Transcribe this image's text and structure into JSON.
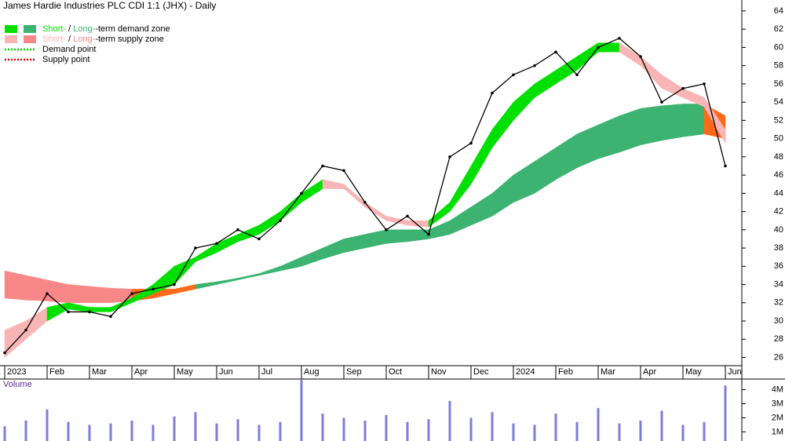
{
  "chart_data": {
    "type": "stock",
    "title": "James Hardie Industries PLC CDI 1:1 (JHX) - Daily",
    "categories": [
      "2023",
      null,
      "Feb",
      null,
      "Mar",
      null,
      "Apr",
      null,
      "May",
      null,
      "Jun",
      null,
      "Jul",
      null,
      "Aug",
      null,
      "Sep",
      null,
      "Oct",
      null,
      "Nov",
      null,
      "Dec",
      null,
      "2024",
      null,
      "Feb",
      null,
      "Mar",
      null,
      "Apr",
      null,
      "May",
      null,
      "Jun"
    ],
    "values": [
      26.5,
      29,
      33,
      31,
      31,
      30.5,
      33,
      33.5,
      34,
      38,
      38.5,
      40,
      39,
      41,
      44,
      47,
      46.5,
      43,
      40,
      41.5,
      39.5,
      48,
      49.5,
      55,
      57,
      58,
      59.5,
      57,
      60,
      61,
      59,
      54,
      55.5,
      56,
      47
    ],
    "color": "#000000",
    "ylim": [
      25.1,
      65.2
    ],
    "yticks": [
      26,
      28,
      30,
      32,
      34,
      36,
      38,
      40,
      42,
      44,
      46,
      48,
      50,
      52,
      54,
      56,
      58,
      60,
      62,
      64
    ],
    "zones": [
      {
        "upper": [
          35.5,
          35,
          34.5,
          34,
          33.8,
          33.6,
          33.5,
          33.5,
          33.5,
          34,
          34.3,
          34.7,
          35.2,
          36,
          37,
          38,
          39,
          39.5,
          40,
          40,
          40,
          41,
          42.5,
          44,
          46,
          47.5,
          49,
          50.5,
          51.5,
          52.5,
          53.3,
          53.6,
          53.8,
          53.8,
          52.5
        ],
        "lower": [
          32.5,
          32.3,
          32.2,
          32,
          32,
          32,
          32.2,
          32.5,
          33,
          33.5,
          34,
          34.5,
          35,
          35.5,
          36,
          36.8,
          37.5,
          38,
          38.5,
          38.7,
          39,
          39.5,
          40.5,
          41.5,
          43,
          44,
          45.5,
          46.8,
          47.8,
          48.5,
          49.3,
          49.8,
          50.2,
          50.5,
          50
        ],
        "colors": [
          "#f88888",
          "#f88888",
          "#f88888",
          "#f88888",
          "#f88888",
          "#f88888",
          "#ff6a1a",
          "#ff6a1a",
          "#ff6a1a",
          "#3cb371",
          "#3cb371",
          "#3cb371",
          "#3cb371",
          "#3cb371",
          "#3cb371",
          "#3cb371",
          "#3cb371",
          "#3cb371",
          "#3cb371",
          "#3cb371",
          "#3cb371",
          "#3cb371",
          "#3cb371",
          "#3cb371",
          "#3cb371",
          "#3cb371",
          "#3cb371",
          "#3cb371",
          "#3cb371",
          "#3cb371",
          "#3cb371",
          "#3cb371",
          "#3cb371",
          "#ff6a1a",
          "#ff6a1a"
        ]
      },
      {
        "upper": [
          29,
          30,
          31.5,
          32,
          31.5,
          31.5,
          32.5,
          34,
          36,
          37,
          38.5,
          39.5,
          40.5,
          42,
          44,
          45.5,
          45,
          43,
          41.5,
          41,
          41,
          43,
          47,
          51,
          54,
          56,
          57.5,
          59,
          60.5,
          60.5,
          59,
          57,
          55.5,
          54.5,
          51
        ],
        "lower": [
          26,
          28,
          30,
          31.3,
          31,
          31,
          32,
          33,
          34,
          36.5,
          37.5,
          38.7,
          39.5,
          41,
          43,
          44.5,
          44.5,
          42.5,
          41,
          40.5,
          40.3,
          42,
          45,
          49,
          52,
          54.5,
          56,
          57.5,
          59.5,
          59.5,
          58,
          55.5,
          54.5,
          53.5,
          49.5
        ],
        "colors": [
          "#f9b5b5",
          "#f9b5b5",
          "#00e000",
          "#00e000",
          "#00e000",
          "#00e000",
          "#00e000",
          "#00e000",
          "#00e000",
          "#00e000",
          "#00e000",
          "#00e000",
          "#00e000",
          "#00e000",
          "#00e000",
          "#f9b5b5",
          "#f9b5b5",
          "#f9b5b5",
          "#f9b5b5",
          "#f9b5b5",
          "#00e000",
          "#00e000",
          "#00e000",
          "#00e000",
          "#00e000",
          "#00e000",
          "#00e000",
          "#00e000",
          "#00e000",
          "#f9b5b5",
          "#f9b5b5",
          "#f9b5b5",
          "#f9b5b5",
          "#f9b5b5",
          "#f9b5b5"
        ]
      }
    ],
    "legend": [
      {
        "short": "Short-",
        "sep": " / ",
        "long": "Long-",
        "rest": "-term demand zone",
        "colors": [
          "#00e000",
          "#3cb371"
        ]
      },
      {
        "short": "Short-",
        "sep": " / ",
        "long": "Long-",
        "rest": "-term supply zone",
        "colors": [
          "#f9b5b5",
          "#f88888"
        ]
      },
      {
        "text": "Demand point",
        "color": "#00cc00"
      },
      {
        "text": "Supply point",
        "color": "#dd0000"
      }
    ],
    "volume": {
      "label": "Volume",
      "values": [
        1400000,
        1800000,
        2600000,
        1700000,
        1500000,
        1600000,
        1800000,
        1500000,
        2100000,
        2400000,
        1600000,
        1900000,
        1500000,
        1700000,
        4700000,
        2300000,
        2000000,
        1800000,
        2200000,
        1700000,
        1900000,
        3200000,
        2000000,
        2400000,
        1600000,
        1500000,
        2300000,
        1700000,
        2700000,
        1600000,
        1800000,
        2500000,
        1500000,
        1700000,
        4300000
      ],
      "color": "#7d7dde",
      "ylim": [
        350000,
        4760000
      ],
      "yticks": [
        {
          "value": 1000000,
          "label": "1M"
        },
        {
          "value": 2000000,
          "label": "2M"
        },
        {
          "value": 3000000,
          "label": "3M"
        },
        {
          "value": 4000000,
          "label": "4M"
        }
      ]
    }
  }
}
